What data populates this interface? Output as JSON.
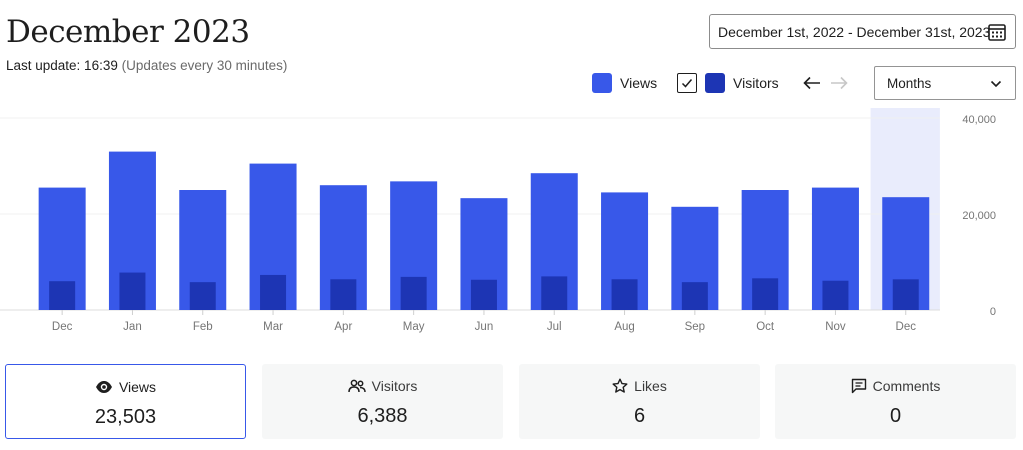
{
  "header": {
    "title": "December 2023",
    "last_update_label": "Last update: 16:39",
    "update_note": "(Updates every 30 minutes)"
  },
  "date_range": {
    "value": "December 1st, 2022 - December 31st, 2023",
    "icon": "calendar-icon"
  },
  "legend": {
    "views_label": "Views",
    "visitors_label": "Visitors",
    "visitors_checked": true
  },
  "nav": {
    "prev_icon": "arrow-left-icon",
    "next_icon": "arrow-right-icon"
  },
  "period_select": {
    "value": "Months",
    "icon": "chevron-down-icon"
  },
  "colors": {
    "views": "#3858e9",
    "visitors": "#1d35b4",
    "highlight": "#e9ecfc",
    "accent": "#3858e9"
  },
  "chart_data": {
    "type": "bar",
    "categories": [
      "Dec",
      "Jan",
      "Feb",
      "Mar",
      "Apr",
      "May",
      "Jun",
      "Jul",
      "Aug",
      "Sep",
      "Oct",
      "Nov",
      "Dec"
    ],
    "series": [
      {
        "name": "Views",
        "values": [
          25500,
          33000,
          25000,
          30500,
          26000,
          26800,
          23300,
          28500,
          24500,
          21500,
          25000,
          25500,
          23503
        ]
      },
      {
        "name": "Visitors",
        "values": [
          6000,
          7800,
          5800,
          7300,
          6400,
          6900,
          6300,
          7000,
          6400,
          5800,
          6600,
          6100,
          6388
        ]
      }
    ],
    "y_ticks": [
      "40,000",
      "20,000",
      "0"
    ],
    "ylim": [
      0,
      40000
    ],
    "highlighted_index": 12,
    "grid": true,
    "y_axis_position": "right"
  },
  "summary_cards": [
    {
      "label": "Views",
      "value": "23,503",
      "icon": "eye-icon",
      "active": true
    },
    {
      "label": "Visitors",
      "value": "6,388",
      "icon": "people-icon",
      "active": false
    },
    {
      "label": "Likes",
      "value": "6",
      "icon": "star-icon",
      "active": false
    },
    {
      "label": "Comments",
      "value": "0",
      "icon": "comment-icon",
      "active": false
    }
  ]
}
